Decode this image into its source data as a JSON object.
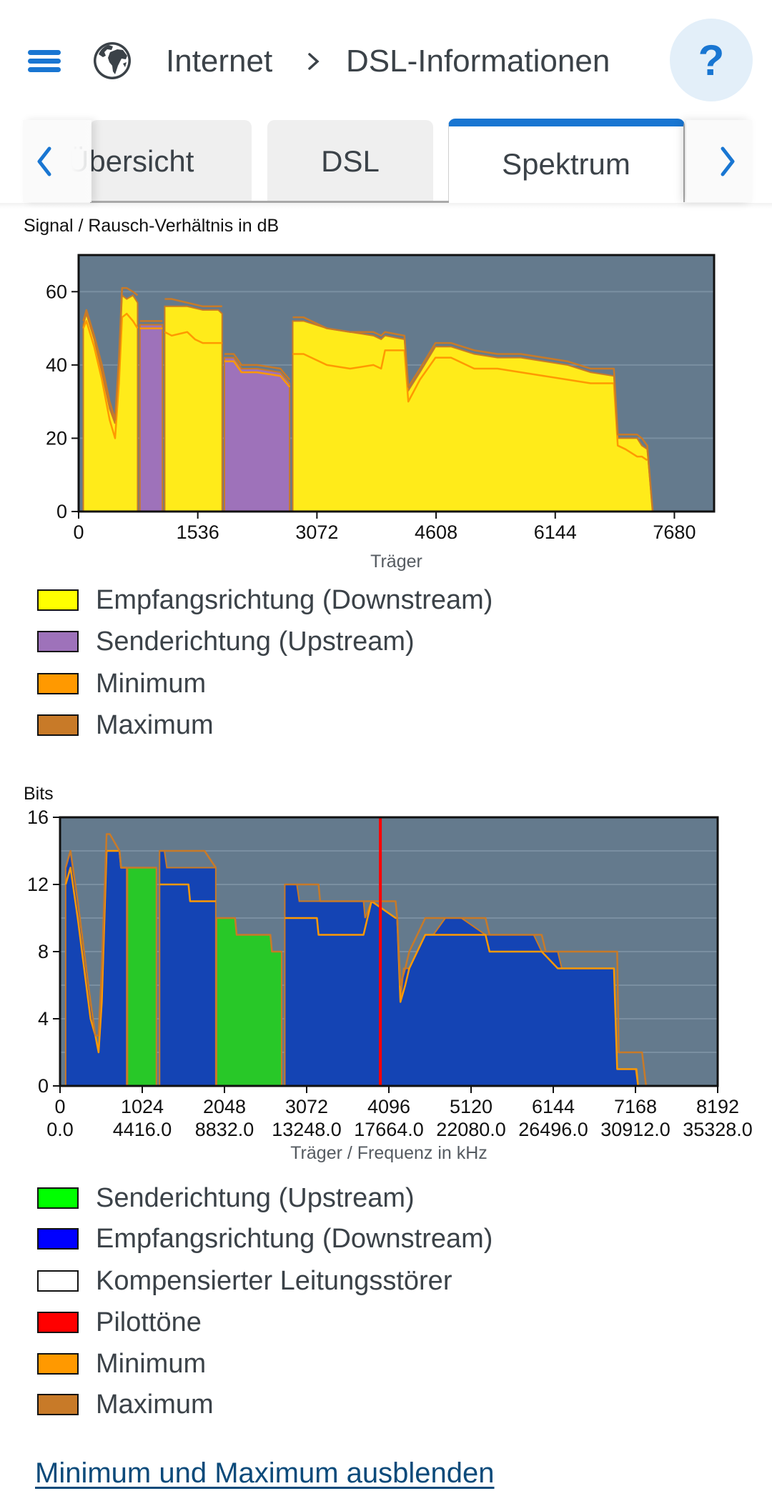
{
  "header": {
    "menu_icon": "hamburger-menu-icon",
    "section_icon": "globe-icon",
    "breadcrumb": [
      "Internet",
      "DSL-Informationen"
    ],
    "breadcrumb_separator_icon": "chevron-right-icon",
    "help_label": "?"
  },
  "tabs": {
    "items": [
      {
        "label": "Übersicht",
        "active": false
      },
      {
        "label": "DSL",
        "active": false
      },
      {
        "label": "Spektrum",
        "active": true
      }
    ],
    "prev_icon": "chevron-left-icon",
    "next_icon": "chevron-right-icon",
    "accent_color": "#1976d2"
  },
  "snr_chart": {
    "title": "Signal / Rausch-Verhältnis in dB",
    "legend": [
      {
        "label": "Empfangsrichtung (Downstream)",
        "color": "#ffff00"
      },
      {
        "label": "Senderichtung (Upstream)",
        "color": "#9e72ba"
      },
      {
        "label": "Minimum",
        "color": "#ff9900"
      },
      {
        "label": "Maximum",
        "color": "#c87a28"
      }
    ]
  },
  "bits_chart": {
    "title": "Bits",
    "legend": [
      {
        "label": "Senderichtung (Upstream)",
        "color": "#00ff00"
      },
      {
        "label": "Empfangsrichtung (Downstream)",
        "color": "#0000ff"
      },
      {
        "label": "Kompensierter Leitungsstörer",
        "color": "#ffffff"
      },
      {
        "label": "Pilottöne",
        "color": "#ff0000"
      },
      {
        "label": "Minimum",
        "color": "#ff9900"
      },
      {
        "label": "Maximum",
        "color": "#c87a28"
      }
    ]
  },
  "toggle_link": "Minimum und Maximum ausblenden",
  "chart_data": [
    {
      "type": "area",
      "title": "Signal / Rausch-Verhältnis in dB",
      "xlabel": "Träger",
      "ylabel": "",
      "xlim": [
        0,
        8192
      ],
      "ylim": [
        0,
        70
      ],
      "xticks": [
        0,
        1536,
        3072,
        4608,
        6144,
        7680
      ],
      "yticks": [
        0,
        20,
        40,
        60
      ],
      "grid": true,
      "background": "#647a8d",
      "colors": {
        "downstream": "#ffeb1a",
        "upstream": "#9e72ba",
        "minimum": "#ff9900",
        "maximum": "#c87a28"
      },
      "series": [
        {
          "name": "Empfangsrichtung (Downstream)",
          "bands": [
            {
              "x": [
                60,
                100,
                200,
                300,
                400,
                470,
                520,
                560,
                620,
                700,
                760
              ],
              "y": [
                51,
                54,
                47,
                38,
                28,
                24,
                40,
                59,
                58,
                59,
                57
              ]
            },
            {
              "x": [
                1110,
                1200,
                1400,
                1600,
                1800,
                1850
              ],
              "y": [
                56,
                56,
                56,
                55,
                55,
                54
              ]
            },
            {
              "x": [
                2760,
                2900,
                3200,
                3500,
                3800,
                3900,
                3950,
                4200,
                4250,
                4400,
                4600,
                4800,
                5100,
                5400,
                5700,
                6000,
                6300,
                6600,
                6900,
                6950,
                7050,
                7200,
                7260,
                7330,
                7400
              ],
              "y": [
                52,
                52,
                50,
                49,
                48,
                47,
                48,
                47,
                33,
                38,
                45,
                45,
                43,
                42,
                42,
                41,
                40,
                38,
                37,
                20,
                20,
                20,
                18,
                17,
                0
              ]
            }
          ]
        },
        {
          "name": "Senderichtung (Upstream)",
          "bands": [
            {
              "x": [
                790,
                1080
              ],
              "y": [
                51,
                51
              ]
            },
            {
              "x": [
                1880,
                2000,
                2100,
                2300,
                2600,
                2720
              ],
              "y": [
                42,
                42,
                39,
                39,
                38,
                35
              ]
            }
          ]
        },
        {
          "name": "Minimum",
          "bands": [
            {
              "x": [
                60,
                100,
                200,
                300,
                400,
                470,
                520,
                560,
                620,
                700,
                760
              ],
              "y": [
                50,
                52,
                45,
                36,
                25,
                20,
                35,
                53,
                54,
                52,
                50
              ]
            },
            {
              "x": [
                790,
                1080
              ],
              "y": [
                50,
                50
              ]
            },
            {
              "x": [
                1110,
                1200,
                1400,
                1500,
                1600,
                1850
              ],
              "y": [
                49,
                48,
                49,
                47,
                46,
                46
              ]
            },
            {
              "x": [
                1880,
                2000,
                2100,
                2300,
                2600,
                2720
              ],
              "y": [
                41,
                41,
                38,
                38,
                37,
                34
              ]
            },
            {
              "x": [
                2760,
                2900,
                3200,
                3500,
                3800,
                3900,
                3950,
                4200,
                4250,
                4400,
                4600,
                4800,
                5100,
                5400,
                5700,
                6000,
                6300,
                6600,
                6900,
                6950,
                7050,
                7200,
                7260,
                7330
              ],
              "y": [
                43,
                43,
                40,
                39,
                40,
                39,
                44,
                44,
                30,
                36,
                42,
                42,
                39,
                39,
                38,
                37,
                36,
                35,
                35,
                18,
                17,
                15,
                15,
                14
              ]
            }
          ]
        },
        {
          "name": "Maximum",
          "bands": [
            {
              "x": [
                60,
                100,
                200,
                300,
                400,
                470,
                520,
                560,
                620,
                700,
                760
              ],
              "y": [
                52,
                55,
                48,
                40,
                30,
                25,
                42,
                61,
                61,
                60,
                59
              ]
            },
            {
              "x": [
                790,
                1080
              ],
              "y": [
                52,
                52
              ]
            },
            {
              "x": [
                1110,
                1200,
                1400,
                1600,
                1800,
                1850
              ],
              "y": [
                58,
                58,
                57,
                56,
                56,
                56
              ]
            },
            {
              "x": [
                1880,
                2000,
                2100,
                2300,
                2600,
                2720
              ],
              "y": [
                43,
                43,
                40,
                40,
                39,
                36
              ]
            },
            {
              "x": [
                2760,
                2900,
                3200,
                3500,
                3800,
                3900,
                3950,
                4200,
                4250,
                4400,
                4600,
                4800,
                5100,
                5400,
                5700,
                6000,
                6300,
                6600,
                6900,
                6950,
                7050,
                7200,
                7260,
                7330,
                7400
              ],
              "y": [
                53,
                53,
                50,
                49,
                49,
                48,
                49,
                48,
                34,
                39,
                46,
                46,
                44,
                43,
                43,
                42,
                41,
                39,
                39,
                21,
                21,
                21,
                20,
                18,
                0
              ]
            }
          ]
        }
      ]
    },
    {
      "type": "area",
      "title": "Bits",
      "xlabel": "Träger / Frequenz in kHz",
      "ylabel": "",
      "xlim": [
        0,
        8192
      ],
      "ylim": [
        0,
        16
      ],
      "xticks": [
        0,
        1024,
        2048,
        3072,
        4096,
        5120,
        6144,
        7168,
        8192
      ],
      "xtick_labels_freq": [
        "0.0",
        "4416.0",
        "8832.0",
        "13248.0",
        "17664.0",
        "22080.0",
        "26496.0",
        "30912.0",
        "35328.0"
      ],
      "yticks": [
        0,
        4,
        8,
        12,
        16
      ],
      "grid": true,
      "background": "#647a8d",
      "colors": {
        "downstream": "#1444b4",
        "upstream": "#28c828",
        "pilot": "#ff0000",
        "minimum": "#ff9900",
        "maximum": "#c87a28"
      },
      "pilot_tones": [
        3990
      ],
      "series": [
        {
          "name": "Senderichtung (Upstream)",
          "bands": [
            {
              "x": [
                840,
                1200
              ],
              "y": [
                13,
                13
              ]
            },
            {
              "x": [
                1950,
                2180,
                2200,
                2620,
                2640,
                2760
              ],
              "y": [
                10,
                10,
                9,
                9,
                8,
                8
              ]
            }
          ]
        },
        {
          "name": "Empfangsrichtung (Downstream)",
          "bands": [
            {
              "x": [
                70,
                130,
                220,
                300,
                380,
                440,
                480,
                520,
                580,
                740,
                760,
                830
              ],
              "y": [
                13,
                14,
                11,
                8,
                5,
                3,
                2,
                5,
                14,
                14,
                13,
                13
              ]
            },
            {
              "x": [
                1240,
                1300,
                1330,
                1940
              ],
              "y": [
                14,
                14,
                13,
                13
              ]
            },
            {
              "x": [
                2800,
                2950,
                2980,
                3220,
                3500,
                3780,
                3800,
                3880,
                4180,
                4200,
                4240,
                4280,
                4350,
                4450,
                4550,
                4650,
                4800,
                5000,
                5300,
                5400,
                5600,
                5900,
                6000,
                6200,
                6250,
                6900,
                6940,
                7170,
                7200
              ],
              "y": [
                12,
                12,
                11,
                11,
                11,
                11,
                10,
                11,
                10,
                10,
                5,
                7,
                7,
                8,
                9,
                9,
                10,
                10,
                9,
                9,
                9,
                9,
                8,
                8,
                7,
                7,
                1,
                1,
                0
              ]
            }
          ]
        },
        {
          "name": "Minimum",
          "bands": [
            {
              "x": [
                70,
                130,
                220,
                300,
                380,
                440,
                480,
                520,
                580,
                740,
                760,
                830
              ],
              "y": [
                12,
                13,
                10,
                7,
                4,
                3,
                2,
                5,
                14,
                14,
                13,
                13
              ]
            },
            {
              "x": [
                1240,
                1600,
                1620,
                1940
              ],
              "y": [
                12,
                12,
                11,
                11
              ]
            },
            {
              "x": [
                2800,
                3200,
                3220,
                3780,
                3880,
                4180,
                4200,
                4240,
                4300,
                4350,
                4450,
                4550,
                5300,
                5350,
                6000,
                6200,
                6250,
                6900,
                6940,
                7180,
                7200
              ],
              "y": [
                10,
                10,
                9,
                9,
                11,
                10,
                10,
                5,
                6,
                7,
                8,
                9,
                9,
                8,
                8,
                7,
                7,
                7,
                1,
                1,
                0
              ]
            }
          ]
        },
        {
          "name": "Maximum",
          "bands": [
            {
              "x": [
                70,
                130,
                220,
                300,
                380,
                440,
                480,
                520,
                580,
                620,
                740,
                760,
                830
              ],
              "y": [
                13,
                14,
                11,
                8,
                5,
                3,
                3,
                7,
                15,
                15,
                14,
                13,
                13
              ]
            },
            {
              "x": [
                840,
                1200
              ],
              "y": [
                13,
                13
              ]
            },
            {
              "x": [
                1240,
                1800,
                1940
              ],
              "y": [
                14,
                14,
                13
              ]
            },
            {
              "x": [
                1950,
                2180,
                2200,
                2620,
                2640,
                2760
              ],
              "y": [
                10,
                10,
                9,
                9,
                8,
                8
              ]
            },
            {
              "x": [
                2800,
                3220,
                3240,
                3880,
                4180,
                4200,
                4240,
                4300,
                4350,
                4450,
                4550,
                5300,
                5350,
                6000,
                6050,
                6940,
                6960,
                7250,
                7300
              ],
              "y": [
                12,
                12,
                11,
                11,
                11,
                10,
                6,
                7,
                8,
                9,
                10,
                10,
                9,
                9,
                8,
                8,
                2,
                2,
                0
              ]
            }
          ]
        }
      ]
    }
  ]
}
